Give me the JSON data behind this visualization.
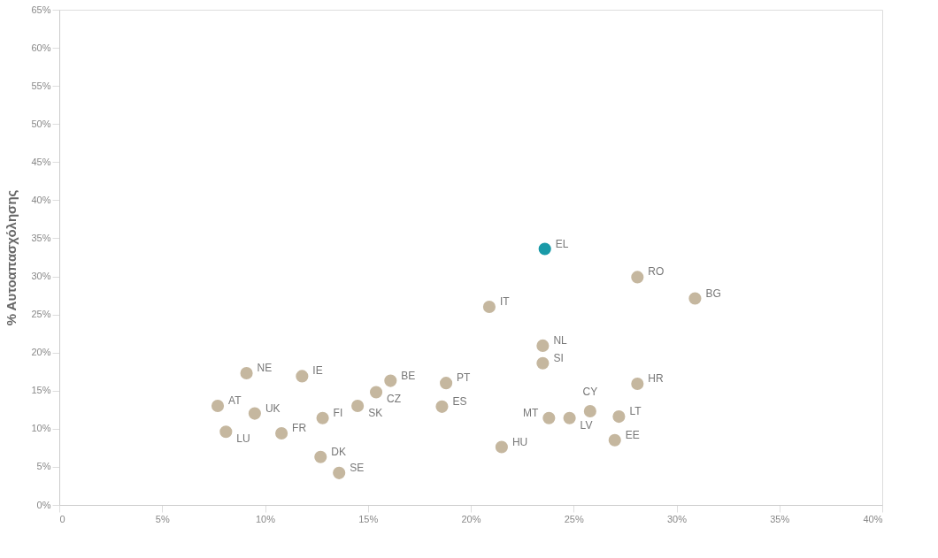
{
  "chart_data": {
    "type": "scatter",
    "ylabel": "% Αυτοαπασχόλησης",
    "xlim": [
      0,
      40
    ],
    "ylim": [
      0,
      65
    ],
    "xticks": [
      {
        "value": 0,
        "label": "0"
      },
      {
        "value": 5,
        "label": "5%"
      },
      {
        "value": 10,
        "label": "10%"
      },
      {
        "value": 15,
        "label": "15%"
      },
      {
        "value": 20,
        "label": "20%"
      },
      {
        "value": 25,
        "label": "25%"
      },
      {
        "value": 30,
        "label": "30%"
      },
      {
        "value": 35,
        "label": "35%"
      },
      {
        "value": 40,
        "label": "40%"
      }
    ],
    "yticks": [
      {
        "value": 0,
        "label": "0%"
      },
      {
        "value": 5,
        "label": "5%"
      },
      {
        "value": 10,
        "label": "10%"
      },
      {
        "value": 15,
        "label": "15%"
      },
      {
        "value": 20,
        "label": "20%"
      },
      {
        "value": 25,
        "label": "25%"
      },
      {
        "value": 30,
        "label": "30%"
      },
      {
        "value": 35,
        "label": "35%"
      },
      {
        "value": 40,
        "label": "40%"
      },
      {
        "value": 45,
        "label": "45%"
      },
      {
        "value": 50,
        "label": "50%"
      },
      {
        "value": 55,
        "label": "55%"
      },
      {
        "value": 60,
        "label": "60%"
      },
      {
        "value": 65,
        "label": "65%"
      }
    ],
    "grid": false,
    "marker": "circle",
    "x": [
      7.7,
      8.1,
      9.1,
      9.5,
      11.8,
      10.8,
      12.8,
      12.7,
      13.6,
      14.5,
      15.4,
      16.1,
      18.8,
      18.6,
      20.9,
      21.5,
      23.6,
      23.5,
      23.5,
      23.8,
      24.8,
      25.8,
      27.2,
      27.0,
      28.1,
      28.1,
      30.9
    ],
    "values": [
      13.0,
      9.6,
      17.3,
      12.0,
      16.9,
      9.4,
      11.4,
      6.3,
      4.2,
      13.0,
      14.8,
      16.3,
      16.0,
      12.9,
      26.0,
      7.6,
      33.6,
      20.9,
      18.6,
      11.4,
      11.4,
      12.3,
      11.6,
      8.5,
      15.9,
      29.9,
      27.1
    ],
    "colors": [
      "#c5b79f",
      "#c5b79f",
      "#c5b79f",
      "#c5b79f",
      "#c5b79f",
      "#c5b79f",
      "#c5b79f",
      "#c5b79f",
      "#c5b79f",
      "#c5b79f",
      "#c5b79f",
      "#c5b79f",
      "#c5b79f",
      "#c5b79f",
      "#c5b79f",
      "#c5b79f",
      "#1a9aa8",
      "#c5b79f",
      "#c5b79f",
      "#c5b79f",
      "#c5b79f",
      "#c5b79f",
      "#c5b79f",
      "#c5b79f",
      "#c5b79f",
      "#c5b79f",
      "#c5b79f"
    ],
    "annotations": [
      {
        "text": "AT",
        "x": 7.7,
        "y": 13.0
      },
      {
        "text": "LU",
        "x": 8.1,
        "y": 9.6
      },
      {
        "text": "NE",
        "x": 9.1,
        "y": 17.3
      },
      {
        "text": "UK",
        "x": 9.5,
        "y": 12.0
      },
      {
        "text": "IE",
        "x": 11.8,
        "y": 16.9
      },
      {
        "text": "FR",
        "x": 10.8,
        "y": 9.4
      },
      {
        "text": "FI",
        "x": 12.8,
        "y": 11.4
      },
      {
        "text": "DK",
        "x": 12.7,
        "y": 6.3
      },
      {
        "text": "SE",
        "x": 13.6,
        "y": 4.2
      },
      {
        "text": "SK",
        "x": 14.5,
        "y": 13.0
      },
      {
        "text": "CZ",
        "x": 15.4,
        "y": 14.8
      },
      {
        "text": "BE",
        "x": 16.1,
        "y": 16.3
      },
      {
        "text": "PT",
        "x": 18.8,
        "y": 16.0
      },
      {
        "text": "ES",
        "x": 18.6,
        "y": 12.9
      },
      {
        "text": "IT",
        "x": 20.9,
        "y": 26.0
      },
      {
        "text": "HU",
        "x": 21.5,
        "y": 7.6
      },
      {
        "text": "EL",
        "x": 23.6,
        "y": 33.6
      },
      {
        "text": "NL",
        "x": 23.5,
        "y": 20.9
      },
      {
        "text": "SI",
        "x": 23.5,
        "y": 18.6
      },
      {
        "text": "MT",
        "x": 23.8,
        "y": 11.4
      },
      {
        "text": "LV",
        "x": 24.8,
        "y": 11.4
      },
      {
        "text": "CY",
        "x": 25.8,
        "y": 12.3
      },
      {
        "text": "LT",
        "x": 27.2,
        "y": 11.6
      },
      {
        "text": "EE",
        "x": 27.0,
        "y": 8.5
      },
      {
        "text": "HR",
        "x": 28.1,
        "y": 15.9
      },
      {
        "text": "RO",
        "x": 28.1,
        "y": 29.9
      },
      {
        "text": "BG",
        "x": 30.9,
        "y": 27.1
      }
    ]
  }
}
